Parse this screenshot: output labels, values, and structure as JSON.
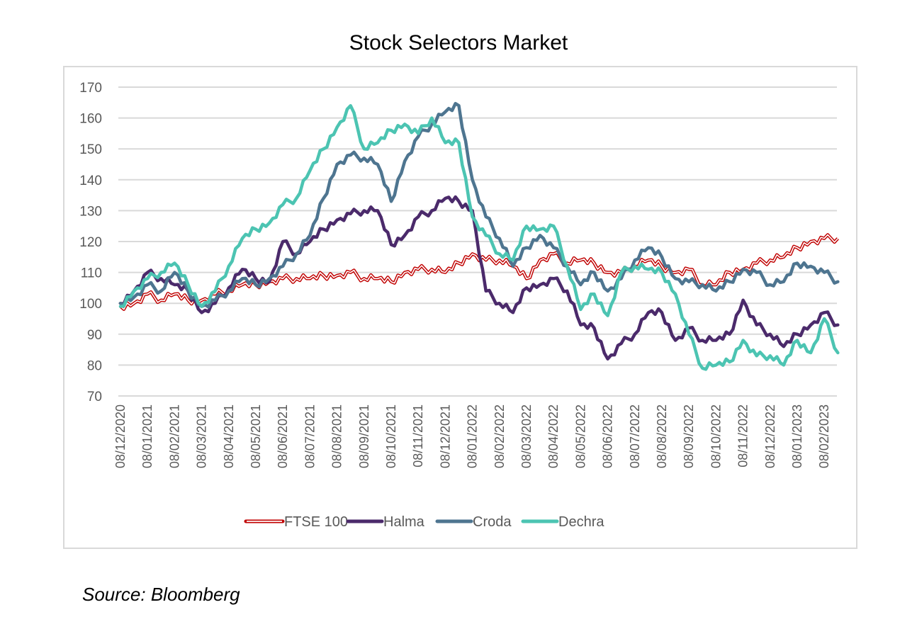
{
  "page": {
    "title": "Stock Selectors Market",
    "source": "Source: Bloomberg"
  },
  "chart_data": {
    "type": "line",
    "title": "Stock Selectors Market",
    "xlabel": "",
    "ylabel": "",
    "ylim": [
      70,
      170
    ],
    "yticks": [
      70,
      80,
      90,
      100,
      110,
      120,
      130,
      140,
      150,
      160,
      170
    ],
    "grid": true,
    "legend_position": "bottom",
    "x_tick_labels": [
      "08/12/2020",
      "08/01/2021",
      "08/02/2021",
      "08/03/2021",
      "08/04/2021",
      "08/05/2021",
      "08/06/2021",
      "08/07/2021",
      "08/08/2021",
      "08/09/2021",
      "08/10/2021",
      "08/11/2021",
      "08/12/2021",
      "08/01/2022",
      "08/02/2022",
      "08/03/2022",
      "08/04/2022",
      "08/05/2022",
      "08/06/2022",
      "08/07/2022",
      "08/08/2022",
      "08/09/2022",
      "08/10/2022",
      "08/11/2022",
      "08/12/2022",
      "08/01/2023",
      "08/02/2023"
    ],
    "x_step": "half-month, starting 08/12/2020",
    "series": [
      {
        "name": "FTSE 100",
        "color": "#c00000",
        "style": "double",
        "values": [
          99,
          100,
          103,
          101,
          103,
          101,
          101,
          103,
          104,
          106,
          106,
          107,
          108,
          108,
          108,
          109,
          109,
          110,
          108,
          108,
          107,
          110,
          111,
          111,
          110,
          113,
          116,
          114,
          114,
          112,
          108,
          114,
          116,
          113,
          114,
          113,
          110,
          110,
          112,
          114,
          112,
          110,
          111,
          106,
          106,
          110,
          111,
          113,
          114,
          115,
          118,
          120,
          121,
          121
        ]
      },
      {
        "name": "Halma",
        "color": "#4b2a6b",
        "style": "solid",
        "values": [
          100,
          104,
          110,
          108,
          106,
          104,
          97,
          100,
          105,
          111,
          108,
          107,
          120,
          116,
          120,
          124,
          127,
          129,
          130,
          130,
          119,
          122,
          128,
          130,
          134,
          133,
          130,
          104,
          100,
          97,
          105,
          106,
          108,
          104,
          93,
          92,
          82,
          87,
          90,
          97,
          97,
          88,
          92,
          88,
          88,
          90,
          101,
          93,
          90,
          86,
          90,
          93,
          97,
          93
        ]
      },
      {
        "name": "Croda",
        "color": "#4e7590",
        "style": "solid",
        "values": [
          100,
          102,
          106,
          104,
          110,
          104,
          99,
          101,
          104,
          108,
          106,
          108,
          112,
          116,
          122,
          134,
          145,
          148,
          147,
          145,
          133,
          146,
          154,
          158,
          162,
          164,
          140,
          128,
          121,
          112,
          118,
          122,
          118,
          112,
          106,
          110,
          104,
          108,
          114,
          118,
          115,
          108,
          107,
          106,
          104,
          107,
          111,
          110,
          106,
          107,
          113,
          112,
          110,
          107
        ]
      },
      {
        "name": "Dechra",
        "color": "#4cc4b2",
        "style": "solid",
        "values": [
          99,
          104,
          108,
          110,
          113,
          106,
          99,
          104,
          112,
          121,
          124,
          126,
          132,
          134,
          143,
          150,
          157,
          164,
          150,
          152,
          156,
          158,
          155,
          160,
          152,
          152,
          128,
          122,
          116,
          114,
          125,
          124,
          125,
          112,
          98,
          103,
          96,
          110,
          112,
          111,
          110,
          103,
          90,
          79,
          80,
          81,
          88,
          83,
          83,
          80,
          88,
          84,
          95,
          84
        ]
      }
    ]
  }
}
